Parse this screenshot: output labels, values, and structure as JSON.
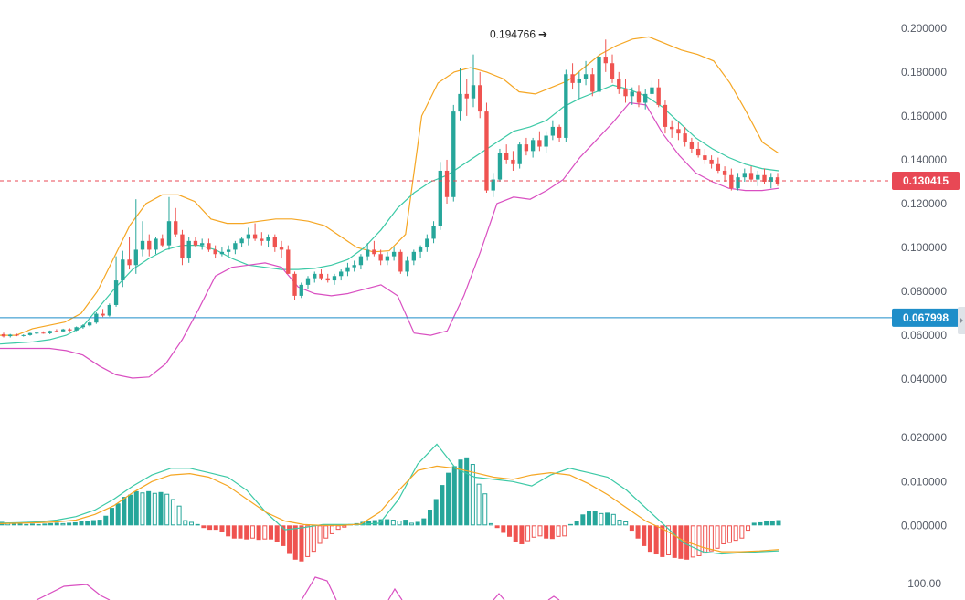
{
  "chart_data": {
    "type": "candlestick",
    "title": "",
    "price_axis": {
      "ticks": [
        "0.200000",
        "0.180000",
        "0.160000",
        "0.140000",
        "0.120000",
        "0.100000",
        "0.080000",
        "0.060000",
        "0.040000"
      ],
      "range": [
        0.028,
        0.2045
      ]
    },
    "current_price": {
      "label": "0.130415",
      "value": 0.130415,
      "color": "#e84855"
    },
    "horizontal_line": {
      "label": "0.067998",
      "value": 0.067998,
      "color": "#1e8ec9"
    },
    "high_annotation": {
      "label": "0.194766",
      "value": 0.194766
    },
    "candles_ohlc": [
      [
        0.0605,
        0.0612,
        0.059,
        0.0595
      ],
      [
        0.0596,
        0.0606,
        0.059,
        0.0603
      ],
      [
        0.0603,
        0.0607,
        0.0596,
        0.0599
      ],
      [
        0.0599,
        0.0604,
        0.0594,
        0.0601
      ],
      [
        0.0601,
        0.0612,
        0.0598,
        0.061
      ],
      [
        0.061,
        0.0616,
        0.0605,
        0.0612
      ],
      [
        0.0612,
        0.0618,
        0.0607,
        0.0609
      ],
      [
        0.0609,
        0.0622,
        0.0605,
        0.062
      ],
      [
        0.062,
        0.0628,
        0.0614,
        0.0618
      ],
      [
        0.0618,
        0.063,
        0.0613,
        0.0627
      ],
      [
        0.0627,
        0.0632,
        0.0618,
        0.0622
      ],
      [
        0.0622,
        0.064,
        0.0619,
        0.0637
      ],
      [
        0.0637,
        0.065,
        0.063,
        0.0645
      ],
      [
        0.0645,
        0.0662,
        0.064,
        0.0658
      ],
      [
        0.0658,
        0.0705,
        0.0652,
        0.0698
      ],
      [
        0.0698,
        0.072,
        0.0683,
        0.069
      ],
      [
        0.069,
        0.0745,
        0.0685,
        0.0738
      ],
      [
        0.0738,
        0.096,
        0.073,
        0.085
      ],
      [
        0.085,
        0.0985,
        0.082,
        0.0945
      ],
      [
        0.0945,
        0.105,
        0.09,
        0.092
      ],
      [
        0.092,
        0.122,
        0.088,
        0.099
      ],
      [
        0.099,
        0.112,
        0.096,
        0.103
      ],
      [
        0.103,
        0.106,
        0.096,
        0.099
      ],
      [
        0.099,
        0.105,
        0.097,
        0.104
      ],
      [
        0.104,
        0.106,
        0.1,
        0.101
      ],
      [
        0.101,
        0.123,
        0.099,
        0.112
      ],
      [
        0.112,
        0.118,
        0.105,
        0.106
      ],
      [
        0.106,
        0.108,
        0.092,
        0.095
      ],
      [
        0.095,
        0.105,
        0.093,
        0.103
      ],
      [
        0.103,
        0.105,
        0.1,
        0.101
      ],
      [
        0.101,
        0.104,
        0.099,
        0.102
      ],
      [
        0.102,
        0.104,
        0.098,
        0.099
      ],
      [
        0.099,
        0.101,
        0.095,
        0.097
      ],
      [
        0.097,
        0.1,
        0.096,
        0.098
      ],
      [
        0.098,
        0.101,
        0.096,
        0.099
      ],
      [
        0.099,
        0.103,
        0.097,
        0.102
      ],
      [
        0.102,
        0.105,
        0.1,
        0.104
      ],
      [
        0.104,
        0.109,
        0.101,
        0.106
      ],
      [
        0.106,
        0.111,
        0.103,
        0.104
      ],
      [
        0.104,
        0.107,
        0.101,
        0.103
      ],
      [
        0.103,
        0.106,
        0.1,
        0.105
      ],
      [
        0.105,
        0.106,
        0.098,
        0.1
      ],
      [
        0.1,
        0.103,
        0.095,
        0.099
      ],
      [
        0.099,
        0.101,
        0.088,
        0.088
      ],
      [
        0.088,
        0.089,
        0.076,
        0.078
      ],
      [
        0.078,
        0.084,
        0.077,
        0.083
      ],
      [
        0.083,
        0.087,
        0.081,
        0.086
      ],
      [
        0.086,
        0.089,
        0.084,
        0.088
      ],
      [
        0.088,
        0.09,
        0.085,
        0.086
      ],
      [
        0.086,
        0.088,
        0.084,
        0.085
      ],
      [
        0.085,
        0.088,
        0.083,
        0.087
      ],
      [
        0.087,
        0.09,
        0.085,
        0.089
      ],
      [
        0.089,
        0.093,
        0.087,
        0.091
      ],
      [
        0.091,
        0.094,
        0.089,
        0.092
      ],
      [
        0.092,
        0.097,
        0.09,
        0.096
      ],
      [
        0.096,
        0.102,
        0.094,
        0.099
      ],
      [
        0.099,
        0.103,
        0.096,
        0.097
      ],
      [
        0.097,
        0.099,
        0.092,
        0.094
      ],
      [
        0.094,
        0.098,
        0.092,
        0.096
      ],
      [
        0.096,
        0.1,
        0.094,
        0.098
      ],
      [
        0.098,
        0.099,
        0.088,
        0.089
      ],
      [
        0.089,
        0.096,
        0.087,
        0.094
      ],
      [
        0.094,
        0.099,
        0.092,
        0.098
      ],
      [
        0.098,
        0.101,
        0.095,
        0.1
      ],
      [
        0.1,
        0.106,
        0.098,
        0.104
      ],
      [
        0.104,
        0.112,
        0.102,
        0.11
      ],
      [
        0.11,
        0.139,
        0.108,
        0.135
      ],
      [
        0.135,
        0.14,
        0.12,
        0.123
      ],
      [
        0.123,
        0.165,
        0.121,
        0.162
      ],
      [
        0.162,
        0.182,
        0.158,
        0.17
      ],
      [
        0.17,
        0.177,
        0.16,
        0.168
      ],
      [
        0.168,
        0.188,
        0.164,
        0.174
      ],
      [
        0.174,
        0.18,
        0.159,
        0.162
      ],
      [
        0.162,
        0.166,
        0.125,
        0.126
      ],
      [
        0.126,
        0.134,
        0.123,
        0.131
      ],
      [
        0.131,
        0.145,
        0.13,
        0.143
      ],
      [
        0.143,
        0.147,
        0.138,
        0.14
      ],
      [
        0.14,
        0.144,
        0.135,
        0.138
      ],
      [
        0.138,
        0.148,
        0.136,
        0.147
      ],
      [
        0.147,
        0.15,
        0.142,
        0.144
      ],
      [
        0.144,
        0.15,
        0.141,
        0.149
      ],
      [
        0.149,
        0.153,
        0.144,
        0.146
      ],
      [
        0.146,
        0.153,
        0.143,
        0.151
      ],
      [
        0.151,
        0.158,
        0.149,
        0.155
      ],
      [
        0.155,
        0.156,
        0.148,
        0.15
      ],
      [
        0.15,
        0.181,
        0.148,
        0.179
      ],
      [
        0.179,
        0.184,
        0.172,
        0.175
      ],
      [
        0.175,
        0.18,
        0.168,
        0.177
      ],
      [
        0.177,
        0.185,
        0.174,
        0.179
      ],
      [
        0.179,
        0.182,
        0.169,
        0.171
      ],
      [
        0.171,
        0.19,
        0.169,
        0.187
      ],
      [
        0.187,
        0.1948,
        0.18,
        0.184
      ],
      [
        0.184,
        0.188,
        0.175,
        0.177
      ],
      [
        0.177,
        0.18,
        0.17,
        0.172
      ],
      [
        0.172,
        0.177,
        0.166,
        0.169
      ],
      [
        0.169,
        0.173,
        0.165,
        0.171
      ],
      [
        0.171,
        0.174,
        0.164,
        0.166
      ],
      [
        0.166,
        0.172,
        0.163,
        0.17
      ],
      [
        0.17,
        0.176,
        0.167,
        0.173
      ],
      [
        0.173,
        0.177,
        0.164,
        0.165
      ],
      [
        0.165,
        0.167,
        0.152,
        0.155
      ],
      [
        0.155,
        0.158,
        0.15,
        0.154
      ],
      [
        0.154,
        0.157,
        0.149,
        0.152
      ],
      [
        0.152,
        0.155,
        0.146,
        0.148
      ],
      [
        0.148,
        0.15,
        0.143,
        0.145
      ],
      [
        0.145,
        0.148,
        0.141,
        0.142
      ],
      [
        0.142,
        0.145,
        0.138,
        0.14
      ],
      [
        0.14,
        0.142,
        0.136,
        0.138
      ],
      [
        0.138,
        0.141,
        0.134,
        0.135
      ],
      [
        0.135,
        0.137,
        0.13,
        0.133
      ],
      [
        0.133,
        0.136,
        0.126,
        0.127
      ],
      [
        0.127,
        0.134,
        0.126,
        0.132
      ],
      [
        0.132,
        0.136,
        0.13,
        0.134
      ],
      [
        0.134,
        0.137,
        0.13,
        0.131
      ],
      [
        0.131,
        0.135,
        0.128,
        0.133
      ],
      [
        0.133,
        0.136,
        0.129,
        0.13
      ],
      [
        0.13,
        0.134,
        0.127,
        0.132
      ],
      [
        0.132,
        0.134,
        0.128,
        0.129
      ]
    ],
    "upper_band": [
      0.06,
      0.06,
      0.063,
      0.0645,
      0.066,
      0.07,
      0.08,
      0.095,
      0.11,
      0.12,
      0.124,
      0.124,
      0.121,
      0.113,
      0.111,
      0.111,
      0.112,
      0.113,
      0.113,
      0.112,
      0.11,
      0.105,
      0.1,
      0.098,
      0.0985,
      0.106,
      0.16,
      0.175,
      0.18,
      0.182,
      0.18,
      0.177,
      0.171,
      0.17,
      0.173,
      0.176,
      0.182,
      0.188,
      0.192,
      0.195,
      0.196,
      0.193,
      0.19,
      0.188,
      0.185,
      0.175,
      0.162,
      0.148,
      0.143
    ],
    "middle_band": [
      0.056,
      0.0565,
      0.057,
      0.058,
      0.06,
      0.064,
      0.073,
      0.082,
      0.09,
      0.095,
      0.099,
      0.101,
      0.101,
      0.099,
      0.095,
      0.092,
      0.091,
      0.09,
      0.09,
      0.0905,
      0.092,
      0.0945,
      0.1,
      0.108,
      0.118,
      0.125,
      0.13,
      0.133,
      0.138,
      0.143,
      0.148,
      0.153,
      0.155,
      0.158,
      0.164,
      0.168,
      0.171,
      0.174,
      0.172,
      0.169,
      0.164,
      0.157,
      0.15,
      0.145,
      0.141,
      0.138,
      0.136,
      0.135
    ],
    "lower_band": [
      0.054,
      0.054,
      0.054,
      0.054,
      0.053,
      0.051,
      0.046,
      0.042,
      0.0405,
      0.041,
      0.047,
      0.058,
      0.072,
      0.087,
      0.091,
      0.092,
      0.093,
      0.091,
      0.082,
      0.079,
      0.078,
      0.079,
      0.081,
      0.083,
      0.078,
      0.061,
      0.06,
      0.062,
      0.078,
      0.098,
      0.12,
      0.123,
      0.122,
      0.126,
      0.131,
      0.141,
      0.149,
      0.157,
      0.166,
      0.165,
      0.152,
      0.142,
      0.134,
      0.13,
      0.127,
      0.126,
      0.126,
      0.127
    ],
    "macd": {
      "ticks": [
        "0.020000",
        "0.010000",
        "0.000000"
      ],
      "range": [
        -0.0093,
        0.0215
      ],
      "histogram": [
        0.0008,
        0.0006,
        0.0004,
        0.0004,
        0.0003,
        0.0004,
        0.0003,
        0.0004,
        0.0005,
        0.0006,
        0.0005,
        0.0006,
        0.0007,
        0.0009,
        0.001,
        0.0012,
        0.0013,
        0.0022,
        0.004,
        0.005,
        0.0065,
        0.007,
        0.0078,
        0.0075,
        0.0078,
        0.0074,
        0.0076,
        0.0072,
        0.006,
        0.0045,
        0.0012,
        0.0008,
        0.0003,
        -0.0006,
        -0.001,
        -0.001,
        -0.0015,
        -0.0025,
        -0.003,
        -0.003,
        -0.0032,
        -0.003,
        -0.0033,
        -0.0032,
        -0.0032,
        -0.0037,
        -0.0047,
        -0.0065,
        -0.0078,
        -0.0082,
        -0.0072,
        -0.006,
        -0.0042,
        -0.003,
        -0.002,
        -0.001,
        -0.0005,
        0.0003,
        0.0005,
        0.0008,
        0.001,
        0.0012,
        0.0014,
        0.0014,
        0.0013,
        0.0011,
        0.0013,
        0.0006,
        0.0008,
        0.0016,
        0.0036,
        0.006,
        0.0092,
        0.012,
        0.0135,
        0.015,
        0.0155,
        0.014,
        0.0095,
        0.0073,
        0.0005,
        -0.0006,
        -0.0017,
        -0.0026,
        -0.0037,
        -0.0043,
        -0.0036,
        -0.0028,
        -0.0025,
        -0.003,
        -0.0031,
        -0.0026,
        -0.0025,
        0.0003,
        0.0011,
        0.0025,
        0.0032,
        0.0032,
        0.0028,
        0.0029,
        0.0026,
        0.0013,
        0.0009,
        -0.0012,
        -0.003,
        -0.0047,
        -0.006,
        -0.0066,
        -0.0072,
        -0.0068,
        -0.0074,
        -0.0076,
        -0.0078,
        -0.0073,
        -0.007,
        -0.0064,
        -0.0059,
        -0.0053,
        -0.0043,
        -0.004,
        -0.0035,
        -0.003,
        -0.0012,
        0.0006,
        0.0007,
        0.001,
        0.001,
        0.0012
      ],
      "macd_line": [
        0.0005,
        0.0006,
        0.0008,
        0.0012,
        0.002,
        0.0035,
        0.006,
        0.009,
        0.0115,
        0.013,
        0.013,
        0.012,
        0.011,
        0.008,
        0.003,
        -0.001,
        -0.0005,
        0.0002,
        0.0002,
        0.0002,
        0.0005,
        0.006,
        0.014,
        0.0185,
        0.013,
        0.011,
        0.0105,
        0.01,
        0.009,
        0.0115,
        0.013,
        0.012,
        0.011,
        0.008,
        0.004,
        0.0,
        -0.004,
        -0.006,
        -0.0065,
        -0.0062,
        -0.006,
        -0.0058
      ],
      "signal_line": [
        0.0004,
        0.0005,
        0.0006,
        0.0008,
        0.0012,
        0.0025,
        0.0045,
        0.0075,
        0.01,
        0.0115,
        0.0118,
        0.011,
        0.009,
        0.006,
        0.003,
        0.001,
        0.0002,
        0.0,
        0.0,
        0.0003,
        0.003,
        0.008,
        0.0125,
        0.0135,
        0.013,
        0.012,
        0.011,
        0.0105,
        0.0115,
        0.012,
        0.0115,
        0.0095,
        0.007,
        0.004,
        0.001,
        -0.001,
        -0.0035,
        -0.005,
        -0.006,
        -0.006,
        -0.0058,
        -0.0055
      ]
    },
    "rsi_tick": "100.00",
    "colors": {
      "up": "#26a69a",
      "down": "#ef5350",
      "upper_band": "#f5a623",
      "middle_band": "#3cc9a6",
      "lower_band": "#d94fc1",
      "macd_line": "#3cc9a6",
      "signal_line": "#f5a623",
      "rsi_line": "#d94fc1"
    }
  }
}
